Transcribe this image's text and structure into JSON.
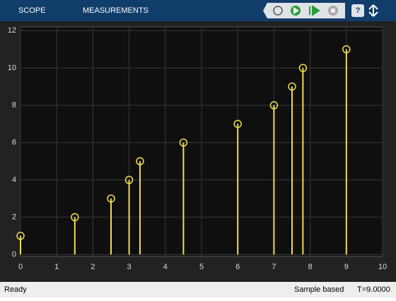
{
  "toolbar": {
    "tabs": [
      "SCOPE",
      "MEASUREMENTS"
    ],
    "help": "?"
  },
  "status": {
    "left": "Ready",
    "mode": "Sample based",
    "time": "T=9.0000"
  },
  "chart_data": {
    "type": "stem",
    "x": [
      0,
      1.5,
      2.5,
      3,
      3.3,
      4.5,
      6,
      7,
      7.5,
      7.8,
      9
    ],
    "series": [
      {
        "color": "#f2dc4f",
        "values": [
          1,
          2,
          3,
          4,
          5,
          6,
          7,
          8,
          9,
          10,
          11
        ]
      }
    ],
    "xlim": [
      0,
      10
    ],
    "xticks": [
      0,
      1,
      2,
      3,
      4,
      5,
      6,
      7,
      8,
      9,
      10
    ],
    "ylim": [
      -0.1,
      12.2
    ],
    "yticks": [
      0,
      2,
      4,
      6,
      8,
      10,
      12
    ],
    "grid": true
  }
}
